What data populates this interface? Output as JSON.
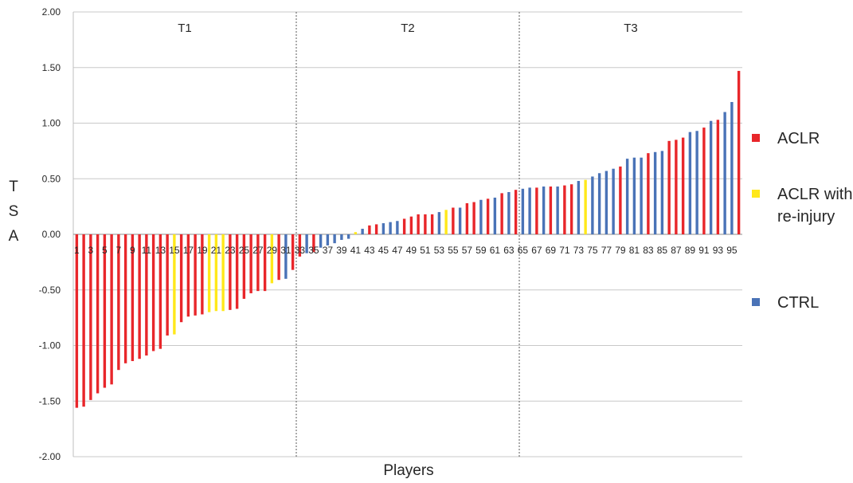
{
  "chart_data": {
    "type": "bar",
    "xlabel": "Players",
    "ylabel": "TSA",
    "ylim": [
      -2.0,
      2.0
    ],
    "yticks": [
      "2.00",
      "1.50",
      "1.00",
      "0.50",
      "0.00",
      "-0.50",
      "-1.00",
      "-1.50",
      "-2.00"
    ],
    "grid": true,
    "legend_position": "right",
    "segments": [
      "T1",
      "T2",
      "T3"
    ],
    "xtick_labels": [
      "1",
      "3",
      "5",
      "7",
      "9",
      "11",
      "13",
      "15",
      "17",
      "19",
      "21",
      "23",
      "25",
      "27",
      "29",
      "31",
      "33",
      "35",
      "37",
      "39",
      "41",
      "43",
      "45",
      "47",
      "49",
      "51",
      "53",
      "55",
      "57",
      "59",
      "61",
      "63",
      "65",
      "67",
      "69",
      "71",
      "73",
      "75",
      "77",
      "79",
      "81",
      "83",
      "85",
      "87",
      "89",
      "91",
      "93",
      "95"
    ],
    "colors": {
      "ACLR": "#e8262a",
      "ACLR with re-injury": "#ffe81a",
      "CTRL": "#4a73b7"
    },
    "series": [
      {
        "name": "ACLR",
        "color": "#e8262a"
      },
      {
        "name": "ACLR with re-injury",
        "color": "#ffe81a"
      },
      {
        "name": "CTRL",
        "color": "#4a73b7"
      }
    ],
    "bars": {
      "values": [
        -1.56,
        -1.55,
        -1.49,
        -1.43,
        -1.38,
        -1.35,
        -1.22,
        -1.16,
        -1.14,
        -1.12,
        -1.09,
        -1.05,
        -1.03,
        -0.91,
        -0.9,
        -0.79,
        -0.74,
        -0.73,
        -0.72,
        -0.7,
        -0.69,
        -0.69,
        -0.68,
        -0.67,
        -0.58,
        -0.53,
        -0.51,
        -0.51,
        -0.44,
        -0.41,
        -0.4,
        -0.32,
        -0.2,
        -0.17,
        -0.16,
        -0.12,
        -0.1,
        -0.08,
        -0.05,
        -0.04,
        0.02,
        0.05,
        0.08,
        0.09,
        0.1,
        0.11,
        0.12,
        0.14,
        0.16,
        0.18,
        0.18,
        0.18,
        0.2,
        0.22,
        0.24,
        0.24,
        0.28,
        0.29,
        0.31,
        0.32,
        0.33,
        0.37,
        0.38,
        0.4,
        0.41,
        0.42,
        0.42,
        0.43,
        0.43,
        0.43,
        0.44,
        0.45,
        0.48,
        0.49,
        0.52,
        0.55,
        0.57,
        0.59,
        0.61,
        0.68,
        0.69,
        0.69,
        0.73,
        0.74,
        0.75,
        0.84,
        0.85,
        0.87,
        0.92,
        0.93,
        0.96,
        1.02,
        1.03,
        1.1,
        1.19,
        1.47
      ],
      "groups": [
        "ACLR",
        "ACLR",
        "ACLR",
        "ACLR",
        "ACLR",
        "ACLR",
        "ACLR",
        "ACLR",
        "ACLR",
        "ACLR",
        "ACLR",
        "ACLR",
        "ACLR",
        "ACLR",
        "ACLR with re-injury",
        "ACLR",
        "ACLR",
        "ACLR",
        "ACLR",
        "ACLR with re-injury",
        "ACLR with re-injury",
        "ACLR with re-injury",
        "ACLR",
        "ACLR",
        "ACLR",
        "ACLR",
        "ACLR",
        "ACLR",
        "ACLR with re-injury",
        "ACLR",
        "CTRL",
        "ACLR",
        "ACLR",
        "CTRL",
        "ACLR",
        "CTRL",
        "CTRL",
        "CTRL",
        "CTRL",
        "CTRL",
        "ACLR with re-injury",
        "CTRL",
        "ACLR",
        "ACLR",
        "CTRL",
        "CTRL",
        "CTRL",
        "ACLR",
        "ACLR",
        "ACLR",
        "ACLR",
        "ACLR",
        "CTRL",
        "ACLR with re-injury",
        "ACLR",
        "CTRL",
        "ACLR",
        "ACLR",
        "CTRL",
        "ACLR",
        "CTRL",
        "ACLR",
        "CTRL",
        "ACLR",
        "CTRL",
        "CTRL",
        "ACLR",
        "CTRL",
        "ACLR",
        "CTRL",
        "ACLR",
        "ACLR",
        "CTRL",
        "ACLR with re-injury",
        "CTRL",
        "CTRL",
        "CTRL",
        "CTRL",
        "ACLR",
        "CTRL",
        "CTRL",
        "CTRL",
        "ACLR",
        "CTRL",
        "CTRL",
        "ACLR",
        "ACLR",
        "ACLR",
        "CTRL",
        "CTRL",
        "ACLR",
        "CTRL",
        "ACLR",
        "CTRL",
        "CTRL",
        "ACLR"
      ]
    }
  },
  "legend": {
    "items": [
      {
        "label": "ACLR",
        "color": "#e8262a"
      },
      {
        "label": "ACLR with re-injury",
        "color": "#ffe81a"
      },
      {
        "label": "CTRL",
        "color": "#4a73b7"
      }
    ]
  }
}
